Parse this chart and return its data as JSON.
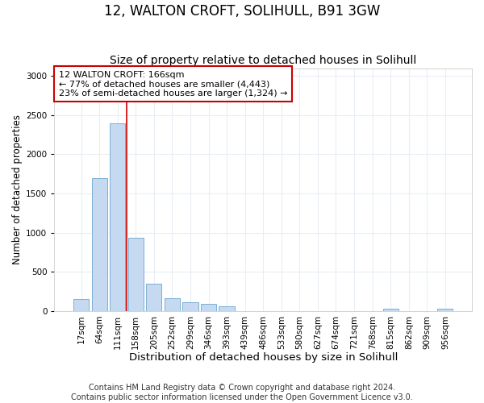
{
  "title": "12, WALTON CROFT, SOLIHULL, B91 3GW",
  "subtitle": "Size of property relative to detached houses in Solihull",
  "xlabel": "Distribution of detached houses by size in Solihull",
  "ylabel": "Number of detached properties",
  "categories": [
    "17sqm",
    "64sqm",
    "111sqm",
    "158sqm",
    "205sqm",
    "252sqm",
    "299sqm",
    "346sqm",
    "393sqm",
    "439sqm",
    "486sqm",
    "533sqm",
    "580sqm",
    "627sqm",
    "674sqm",
    "721sqm",
    "768sqm",
    "815sqm",
    "862sqm",
    "909sqm",
    "956sqm"
  ],
  "values": [
    150,
    1700,
    2400,
    930,
    350,
    165,
    115,
    95,
    60,
    0,
    0,
    0,
    0,
    0,
    0,
    0,
    0,
    30,
    0,
    0,
    30
  ],
  "bar_color": "#c5d9f0",
  "bar_edgecolor": "#7bafd4",
  "vline_x_index": 2.5,
  "vline_color": "#cc0000",
  "annotation_text": "12 WALTON CROFT: 166sqm\n← 77% of detached houses are smaller (4,443)\n23% of semi-detached houses are larger (1,324) →",
  "annotation_box_color": "#ffffff",
  "annotation_box_edgecolor": "#cc0000",
  "ylim": [
    0,
    3100
  ],
  "yticks": [
    0,
    500,
    1000,
    1500,
    2000,
    2500,
    3000
  ],
  "bg_color": "#ffffff",
  "plot_bg_color": "#ffffff",
  "grid_color": "#e8eef5",
  "footer": "Contains HM Land Registry data © Crown copyright and database right 2024.\nContains public sector information licensed under the Open Government Licence v3.0.",
  "title_fontsize": 12,
  "subtitle_fontsize": 10,
  "xlabel_fontsize": 9.5,
  "ylabel_fontsize": 8.5,
  "tick_fontsize": 7.5,
  "footer_fontsize": 7
}
